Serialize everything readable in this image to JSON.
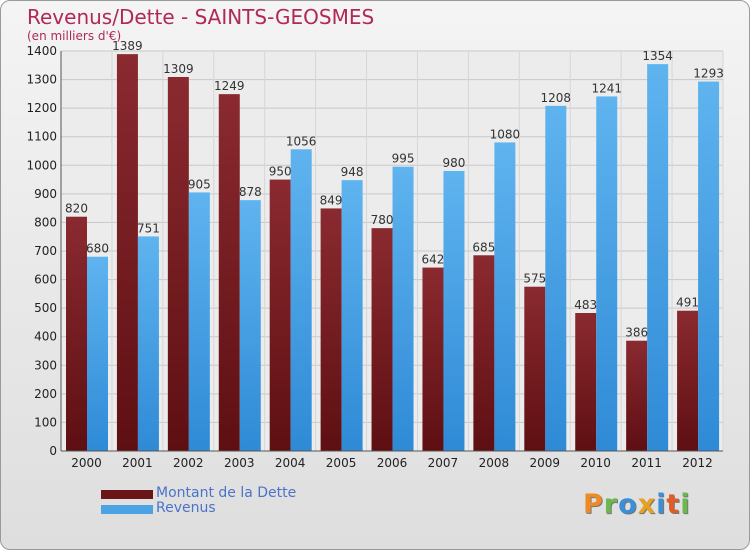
{
  "chart_data": {
    "type": "bar",
    "title": "Revenus/Dette - SAINTS-GEOSMES",
    "subtitle": "(en milliers d'€)",
    "categories": [
      "2000",
      "2001",
      "2002",
      "2003",
      "2004",
      "2005",
      "2006",
      "2007",
      "2008",
      "2009",
      "2010",
      "2011",
      "2012"
    ],
    "series": [
      {
        "name": "Montant de la Dette",
        "color": "#7a1e22",
        "values": [
          820,
          1389,
          1309,
          1249,
          950,
          849,
          780,
          642,
          685,
          575,
          483,
          386,
          491
        ]
      },
      {
        "name": "Revenus",
        "color": "#4ba3e3",
        "values": [
          680,
          751,
          905,
          878,
          1056,
          948,
          995,
          980,
          1080,
          1208,
          1241,
          1354,
          1293
        ]
      }
    ],
    "ylim": [
      0,
      1400
    ],
    "yticks": [
      0,
      100,
      200,
      300,
      400,
      500,
      600,
      700,
      800,
      900,
      1000,
      1100,
      1200,
      1300,
      1400
    ],
    "grid": true,
    "legend_position": "bottom-left"
  },
  "logo": {
    "text": "Proxiti",
    "letters": [
      {
        "ch": "P",
        "color": "#f08a24"
      },
      {
        "ch": "r",
        "color": "#6ab94c"
      },
      {
        "ch": "o",
        "color": "#3a8fd8"
      },
      {
        "ch": "x",
        "color": "#e8a020"
      },
      {
        "ch": "i",
        "color": "#3a8fd8"
      },
      {
        "ch": "t",
        "color": "#e05b2a"
      },
      {
        "ch": "i",
        "color": "#6ab94c"
      }
    ]
  }
}
